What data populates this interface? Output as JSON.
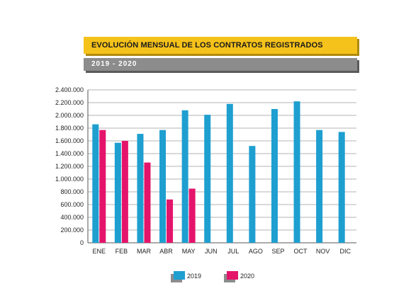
{
  "header": {
    "title": "EVOLUCIÓN MENSUAL DE LOS CONTRATOS REGISTRADOS",
    "subtitle": "2019 - 2020"
  },
  "chart_data": {
    "type": "bar",
    "categories": [
      "ENE",
      "FEB",
      "MAR",
      "ABR",
      "MAY",
      "JUN",
      "JUL",
      "AGO",
      "SEP",
      "OCT",
      "NOV",
      "DIC"
    ],
    "series": [
      {
        "name": "2019",
        "color": "#1e9fd0",
        "values": [
          1860000,
          1570000,
          1710000,
          1770000,
          2080000,
          2010000,
          2180000,
          1520000,
          2100000,
          2220000,
          1770000,
          1740000
        ]
      },
      {
        "name": "2020",
        "color": "#e5146b",
        "values": [
          1770000,
          1600000,
          1260000,
          680000,
          850000,
          null,
          null,
          null,
          null,
          null,
          null,
          null
        ]
      }
    ],
    "ylim": [
      0,
      2400000
    ],
    "yticks": [
      0,
      200000,
      400000,
      600000,
      800000,
      1000000,
      1200000,
      1400000,
      1600000,
      1800000,
      2000000,
      2200000,
      2400000
    ],
    "ytick_labels": [
      "0",
      "200.000",
      "400.000",
      "600.000",
      "800.000",
      "1.000.000",
      "1.200.000",
      "1.400.000",
      "1.600.000",
      "1.800.000",
      "2.000.000",
      "2.200.000",
      "2.400.000"
    ],
    "grid": true,
    "legend_position": "bottom"
  }
}
